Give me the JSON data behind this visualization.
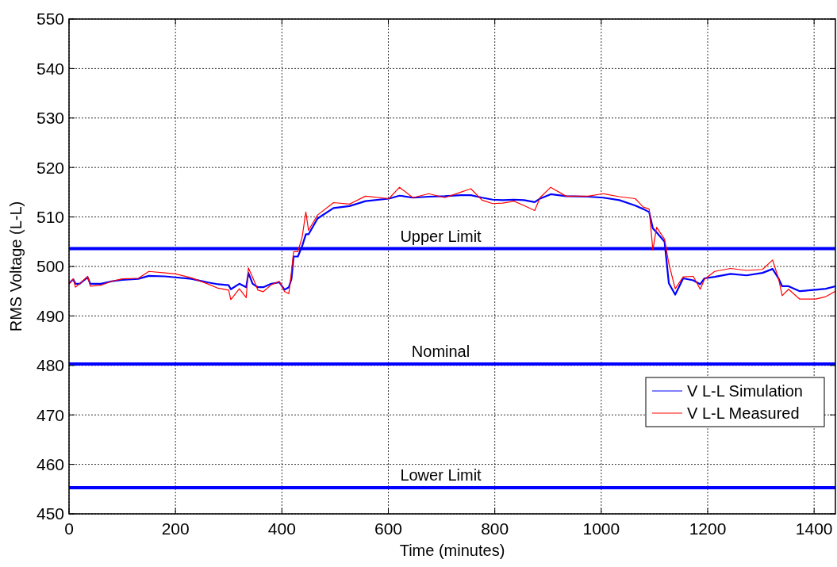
{
  "chart_data": {
    "type": "line",
    "xlabel": "Time (minutes)",
    "ylabel": "RMS Voltage (L-L)",
    "xlim": [
      0,
      1440
    ],
    "ylim": [
      450,
      550
    ],
    "xticks": [
      0,
      200,
      400,
      600,
      800,
      1000,
      1200,
      1400
    ],
    "yticks": [
      450,
      460,
      470,
      480,
      490,
      500,
      510,
      520,
      530,
      540,
      550
    ],
    "grid": true,
    "legend": "bottom right",
    "line_style": "solid",
    "marker": "none",
    "ref_lines": [
      {
        "axis": "y",
        "value": 503.6,
        "label": "Upper Limit",
        "color": "#0000ff"
      },
      {
        "axis": "y",
        "value": 480.3,
        "label": "Nominal",
        "color": "#0000ff"
      },
      {
        "axis": "y",
        "value": 455.3,
        "label": "Lower Limit",
        "color": "#0000ff"
      }
    ],
    "series": [
      {
        "name": "V L-L Simulation",
        "color": "#0000ff",
        "x": [
          0,
          8,
          12,
          20,
          35,
          40,
          60,
          80,
          100,
          130,
          150,
          180,
          200,
          230,
          260,
          280,
          300,
          304,
          320,
          333,
          337,
          345,
          355,
          365,
          380,
          395,
          405,
          413,
          418,
          422,
          430,
          438,
          445,
          450,
          467,
          497,
          527,
          557,
          601,
          621,
          646,
          676,
          706,
          736,
          755,
          776,
          796,
          815,
          836,
          855,
          875,
          885,
          905,
          934,
          975,
          1004,
          1034,
          1064,
          1079,
          1090,
          1097,
          1104,
          1119,
          1127,
          1139,
          1154,
          1173,
          1186,
          1194,
          1213,
          1243,
          1273,
          1303,
          1322,
          1333,
          1340,
          1352,
          1373,
          1403,
          1422,
          1440
        ],
        "values": [
          496.6,
          497.4,
          496.5,
          496.5,
          497.8,
          496.5,
          496.5,
          497,
          497.3,
          497.5,
          498.1,
          498,
          497.8,
          497.5,
          496.8,
          496.4,
          496.2,
          495.4,
          496.5,
          495.8,
          498.7,
          496.5,
          495.8,
          495.8,
          496.5,
          496.8,
          495.3,
          495.8,
          497.5,
          502,
          502,
          504.1,
          506.5,
          506.5,
          509.7,
          511.8,
          512.2,
          513.2,
          513.7,
          514.3,
          513.9,
          514.1,
          514.2,
          514.4,
          514.4,
          513.9,
          513.5,
          513.4,
          513.5,
          513.4,
          513,
          513.7,
          514.6,
          514.2,
          514.1,
          513.9,
          513.4,
          512.3,
          511.6,
          511,
          507.7,
          506.9,
          505,
          496.6,
          494.3,
          497.6,
          497.2,
          496.4,
          497.6,
          497.9,
          498.5,
          498.2,
          498.7,
          499.5,
          497.6,
          496,
          496,
          495,
          495.3,
          495.5,
          496
        ]
      },
      {
        "name": "V L-L Measured",
        "color": "#ff0000",
        "x": [
          0,
          8,
          12,
          20,
          35,
          40,
          60,
          80,
          100,
          130,
          150,
          180,
          200,
          230,
          260,
          280,
          300,
          304,
          320,
          333,
          337,
          345,
          355,
          365,
          380,
          395,
          405,
          413,
          418,
          422,
          430,
          438,
          445,
          450,
          467,
          497,
          527,
          557,
          601,
          621,
          646,
          676,
          706,
          736,
          755,
          776,
          796,
          815,
          836,
          855,
          875,
          885,
          905,
          934,
          975,
          1004,
          1034,
          1064,
          1079,
          1090,
          1097,
          1104,
          1119,
          1127,
          1139,
          1154,
          1173,
          1186,
          1194,
          1213,
          1243,
          1273,
          1303,
          1322,
          1333,
          1340,
          1352,
          1373,
          1403,
          1422,
          1440
        ],
        "values": [
          496.4,
          497.5,
          495.8,
          496.5,
          498,
          496,
          496.2,
          497,
          497.5,
          497.6,
          499,
          498.7,
          498.5,
          497.7,
          496.5,
          495.6,
          495.2,
          493.3,
          495.5,
          493.7,
          499.7,
          497.8,
          495.2,
          494.9,
          496.3,
          497,
          494.9,
          494.5,
          499,
          503,
          503,
          505.9,
          511,
          507.3,
          510.4,
          512.9,
          512.6,
          514.2,
          513.7,
          516,
          513.9,
          514.7,
          513.9,
          515,
          515.7,
          513.4,
          512.7,
          512.8,
          513.2,
          512.3,
          511.3,
          513.9,
          516,
          514.2,
          514.2,
          514.7,
          514.1,
          513.7,
          512,
          511.6,
          503.3,
          507.9,
          505.5,
          500.6,
          495.5,
          497.9,
          498,
          495.4,
          497.4,
          499,
          499.6,
          499.2,
          499.4,
          501.3,
          497.6,
          494.1,
          495.4,
          493.4,
          493.4,
          493.9,
          495
        ]
      }
    ]
  }
}
